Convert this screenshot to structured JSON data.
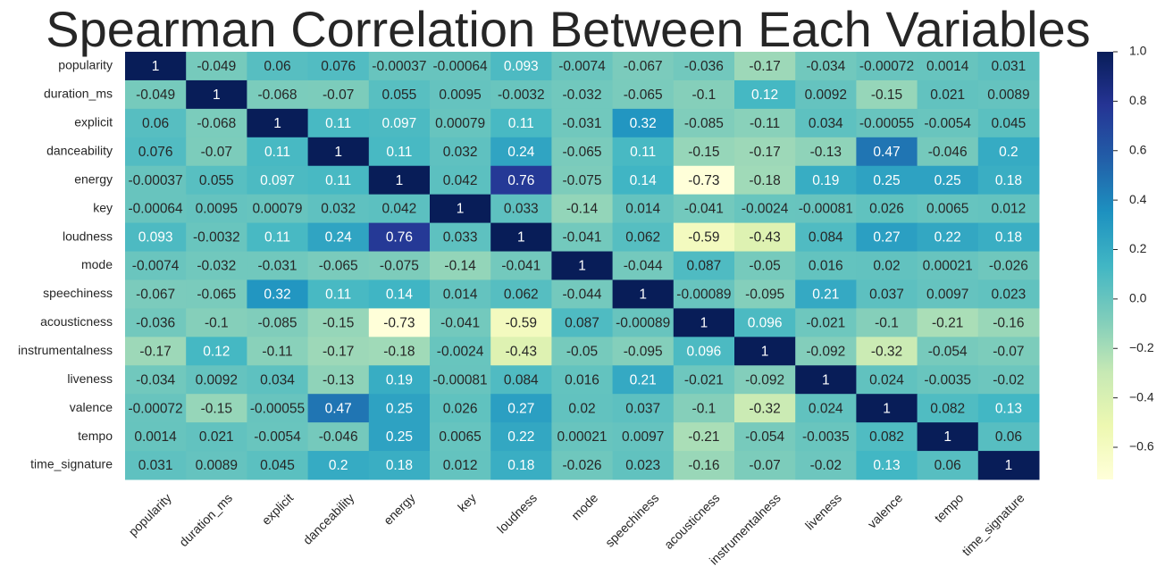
{
  "chart_data": {
    "type": "heatmap",
    "title": "Spearman Correlation Between Each Variables",
    "categories": [
      "popularity",
      "duration_ms",
      "explicit",
      "danceability",
      "energy",
      "key",
      "loudness",
      "mode",
      "speechiness",
      "acousticness",
      "instrumentalness",
      "liveness",
      "valence",
      "tempo",
      "time_signature"
    ],
    "values": [
      [
        1,
        -0.049,
        0.06,
        0.076,
        -0.00037,
        -0.00064,
        0.093,
        -0.0074,
        -0.067,
        -0.036,
        -0.17,
        -0.034,
        -0.00072,
        0.0014,
        0.031
      ],
      [
        -0.049,
        1,
        -0.068,
        -0.07,
        0.055,
        0.0095,
        -0.0032,
        -0.032,
        -0.065,
        -0.1,
        0.12,
        0.0092,
        -0.15,
        0.021,
        0.0089
      ],
      [
        0.06,
        -0.068,
        1,
        0.11,
        0.097,
        0.00079,
        0.11,
        -0.031,
        0.32,
        -0.085,
        -0.11,
        0.034,
        -0.00055,
        -0.0054,
        0.045
      ],
      [
        0.076,
        -0.07,
        0.11,
        1,
        0.11,
        0.032,
        0.24,
        -0.065,
        0.11,
        -0.15,
        -0.17,
        -0.13,
        0.47,
        -0.046,
        0.2
      ],
      [
        -0.00037,
        0.055,
        0.097,
        0.11,
        1,
        0.042,
        0.76,
        -0.075,
        0.14,
        -0.73,
        -0.18,
        0.19,
        0.25,
        0.25,
        0.18
      ],
      [
        -0.00064,
        0.0095,
        0.00079,
        0.032,
        0.042,
        1,
        0.033,
        -0.14,
        0.014,
        -0.041,
        -0.0024,
        -0.00081,
        0.026,
        0.0065,
        0.012
      ],
      [
        0.093,
        -0.0032,
        0.11,
        0.24,
        0.76,
        0.033,
        1,
        -0.041,
        0.062,
        -0.59,
        -0.43,
        0.084,
        0.27,
        0.22,
        0.18
      ],
      [
        -0.0074,
        -0.032,
        -0.031,
        -0.065,
        -0.075,
        -0.14,
        -0.041,
        1,
        -0.044,
        0.087,
        -0.05,
        0.016,
        0.02,
        0.00021,
        -0.026
      ],
      [
        -0.067,
        -0.065,
        0.32,
        0.11,
        0.14,
        0.014,
        0.062,
        -0.044,
        1,
        -0.00089,
        -0.095,
        0.21,
        0.037,
        0.0097,
        0.023
      ],
      [
        -0.036,
        -0.1,
        -0.085,
        -0.15,
        -0.73,
        -0.041,
        -0.59,
        0.087,
        -0.00089,
        1,
        0.096,
        -0.021,
        -0.1,
        -0.21,
        -0.16
      ],
      [
        -0.17,
        0.12,
        -0.11,
        -0.17,
        -0.18,
        -0.0024,
        -0.43,
        -0.05,
        -0.095,
        0.096,
        1,
        -0.092,
        -0.32,
        -0.054,
        -0.07
      ],
      [
        -0.034,
        0.0092,
        0.034,
        -0.13,
        0.19,
        -0.00081,
        0.084,
        0.016,
        0.21,
        -0.021,
        -0.092,
        1,
        0.024,
        -0.0035,
        -0.02
      ],
      [
        -0.00072,
        -0.15,
        -0.00055,
        0.47,
        0.25,
        0.026,
        0.27,
        0.02,
        0.037,
        -0.1,
        -0.32,
        0.024,
        1,
        0.082,
        0.13
      ],
      [
        0.0014,
        0.021,
        -0.0054,
        -0.046,
        0.25,
        0.0065,
        0.22,
        0.00021,
        0.0097,
        -0.21,
        -0.054,
        -0.0035,
        0.082,
        1,
        0.06
      ],
      [
        0.031,
        0.0089,
        0.045,
        0.2,
        0.18,
        0.012,
        0.18,
        -0.026,
        0.023,
        -0.16,
        -0.07,
        -0.02,
        0.13,
        0.06,
        1
      ]
    ],
    "zlim": [
      -0.73,
      1
    ],
    "zticks": [
      {
        "value": 1,
        "label": "1.0"
      },
      0.8,
      0.6,
      0.4,
      0.2,
      {
        "value": 0,
        "label": "0.0"
      },
      {
        "value": -0.2,
        "label": "−0.2"
      },
      {
        "value": -0.4,
        "label": "−0.4"
      },
      {
        "value": -0.6,
        "label": "−0.6"
      }
    ],
    "colors": [
      "#ffffd9",
      "#edf8b1",
      "#c7e9b4",
      "#7fcdbb",
      "#41b6c4",
      "#1d91c0",
      "#225ea8",
      "#253494",
      "#081d58"
    ]
  }
}
